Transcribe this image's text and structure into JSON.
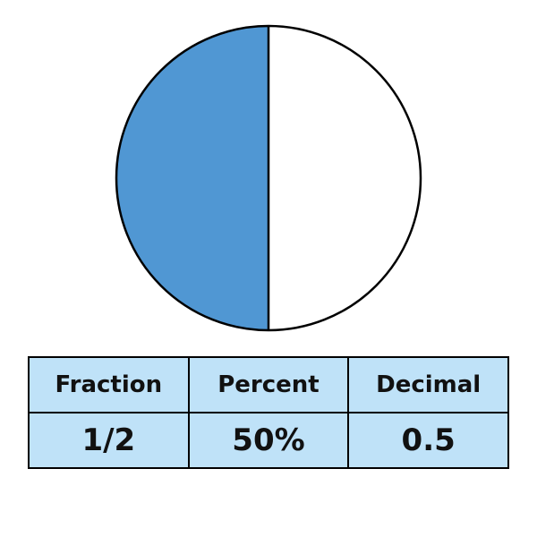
{
  "chart_data": {
    "type": "pie",
    "slices": [
      {
        "fraction": 0.5,
        "filled": true,
        "color": "#5097d3"
      },
      {
        "fraction": 0.5,
        "filled": false,
        "color": "#ffffff"
      }
    ]
  },
  "table": {
    "headers": [
      "Fraction",
      "Percent",
      "Decimal"
    ],
    "values": [
      "1/2",
      "50%",
      "0.5"
    ]
  },
  "colors": {
    "filled": "#5097d3",
    "unfilled": "#ffffff",
    "outline": "#000000",
    "table_background": "#bfe2f8"
  }
}
